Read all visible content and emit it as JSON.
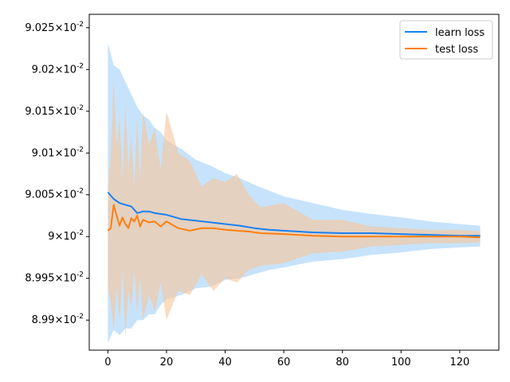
{
  "chart_data": {
    "type": "line",
    "title": "",
    "xlabel": "",
    "ylabel": "",
    "xlim": [
      -6.35,
      133.35
    ],
    "ylim": [
      0.089864,
      0.090266
    ],
    "y_scale": "scientific (×10^-2)",
    "grid": false,
    "legend_position": "top-right",
    "xticks": [
      {
        "value": 0,
        "label": "0"
      },
      {
        "value": 20,
        "label": "20"
      },
      {
        "value": 40,
        "label": "40"
      },
      {
        "value": 60,
        "label": "60"
      },
      {
        "value": 80,
        "label": "80"
      },
      {
        "value": 100,
        "label": "100"
      },
      {
        "value": 120,
        "label": "120"
      }
    ],
    "yticks": [
      {
        "value": 0.0899,
        "mantissa": "8.99",
        "exp": "-2"
      },
      {
        "value": 0.08995,
        "mantissa": "8.995",
        "exp": "-2"
      },
      {
        "value": 0.09,
        "mantissa": "9",
        "exp": "-2"
      },
      {
        "value": 0.09005,
        "mantissa": "9.005",
        "exp": "-2"
      },
      {
        "value": 0.0901,
        "mantissa": "9.01",
        "exp": "-2"
      },
      {
        "value": 0.09015,
        "mantissa": "9.015",
        "exp": "-2"
      },
      {
        "value": 0.0902,
        "mantissa": "9.02",
        "exp": "-2"
      },
      {
        "value": 0.09025,
        "mantissa": "9.025",
        "exp": "-2"
      }
    ],
    "tick_base": "×10",
    "series": [
      {
        "name": "learn loss",
        "color": "#1a80f0",
        "band_color": "#99ccf7",
        "x": [
          0,
          2,
          4,
          6,
          8,
          10,
          12,
          14,
          16,
          18,
          20,
          25,
          30,
          35,
          40,
          45,
          50,
          55,
          60,
          70,
          80,
          90,
          100,
          110,
          120,
          127
        ],
        "mean": [
          0.090053,
          0.090045,
          0.09004,
          0.090038,
          0.090036,
          0.090028,
          0.09003,
          0.09003,
          0.090028,
          0.090027,
          0.090026,
          0.090021,
          0.090019,
          0.090017,
          0.090015,
          0.090013,
          0.09001,
          0.090008,
          0.090007,
          0.090005,
          0.090004,
          0.090004,
          0.090003,
          0.090002,
          0.090001,
          0.090001
        ],
        "upper": [
          0.090232,
          0.090205,
          0.0902,
          0.090185,
          0.09017,
          0.090155,
          0.090145,
          0.09014,
          0.09013,
          0.090125,
          0.090115,
          0.090105,
          0.090092,
          0.090085,
          0.090076,
          0.09007,
          0.090062,
          0.090055,
          0.090048,
          0.09004,
          0.090032,
          0.090027,
          0.090023,
          0.090018,
          0.090015,
          0.090013
        ],
        "lower": [
          0.089873,
          0.089888,
          0.089882,
          0.08989,
          0.08989,
          0.0899,
          0.0899,
          0.089907,
          0.089907,
          0.089918,
          0.089925,
          0.08993,
          0.089938,
          0.08994,
          0.089948,
          0.08995,
          0.089955,
          0.08996,
          0.089963,
          0.08997,
          0.089973,
          0.089978,
          0.089981,
          0.089985,
          0.089987,
          0.089988
        ]
      },
      {
        "name": "test loss",
        "color": "#ff7f0e",
        "band_color": "#f7c49a",
        "x": [
          0,
          1,
          2,
          3,
          4,
          5,
          6,
          7,
          8,
          9,
          10,
          11,
          12,
          14,
          16,
          18,
          20,
          24,
          28,
          32,
          36,
          40,
          44,
          48,
          52,
          60,
          70,
          80,
          90,
          100,
          110,
          120,
          127
        ],
        "mean": [
          0.090007,
          0.09001,
          0.090038,
          0.090025,
          0.090013,
          0.090023,
          0.090015,
          0.09001,
          0.090022,
          0.090018,
          0.090025,
          0.090012,
          0.09002,
          0.090017,
          0.090018,
          0.090012,
          0.090018,
          0.09001,
          0.090007,
          0.09001,
          0.09001,
          0.090008,
          0.090007,
          0.090006,
          0.090004,
          0.090003,
          0.090001,
          0.09,
          0.09,
          0.09,
          0.09,
          0.09,
          0.089999
        ],
        "upper": [
          0.09006,
          0.0901,
          0.090188,
          0.09011,
          0.09014,
          0.09007,
          0.09016,
          0.09008,
          0.09012,
          0.09006,
          0.09014,
          0.09007,
          0.09015,
          0.09011,
          0.09013,
          0.09008,
          0.09015,
          0.0901,
          0.09009,
          0.09006,
          0.09007,
          0.090065,
          0.090075,
          0.09005,
          0.090035,
          0.09004,
          0.09002,
          0.09002,
          0.090012,
          0.09001,
          0.090008,
          0.090008,
          0.090006
        ],
        "lower": [
          0.08994,
          0.08992,
          0.089888,
          0.08994,
          0.0899,
          0.08996,
          0.08988,
          0.089935,
          0.089915,
          0.08996,
          0.08991,
          0.08995,
          0.0899,
          0.08993,
          0.08991,
          0.089945,
          0.0899,
          0.089935,
          0.08993,
          0.089955,
          0.089935,
          0.08995,
          0.089945,
          0.08996,
          0.089965,
          0.089968,
          0.08998,
          0.089982,
          0.089988,
          0.08999,
          0.089992,
          0.089992,
          0.089993
        ]
      }
    ]
  }
}
